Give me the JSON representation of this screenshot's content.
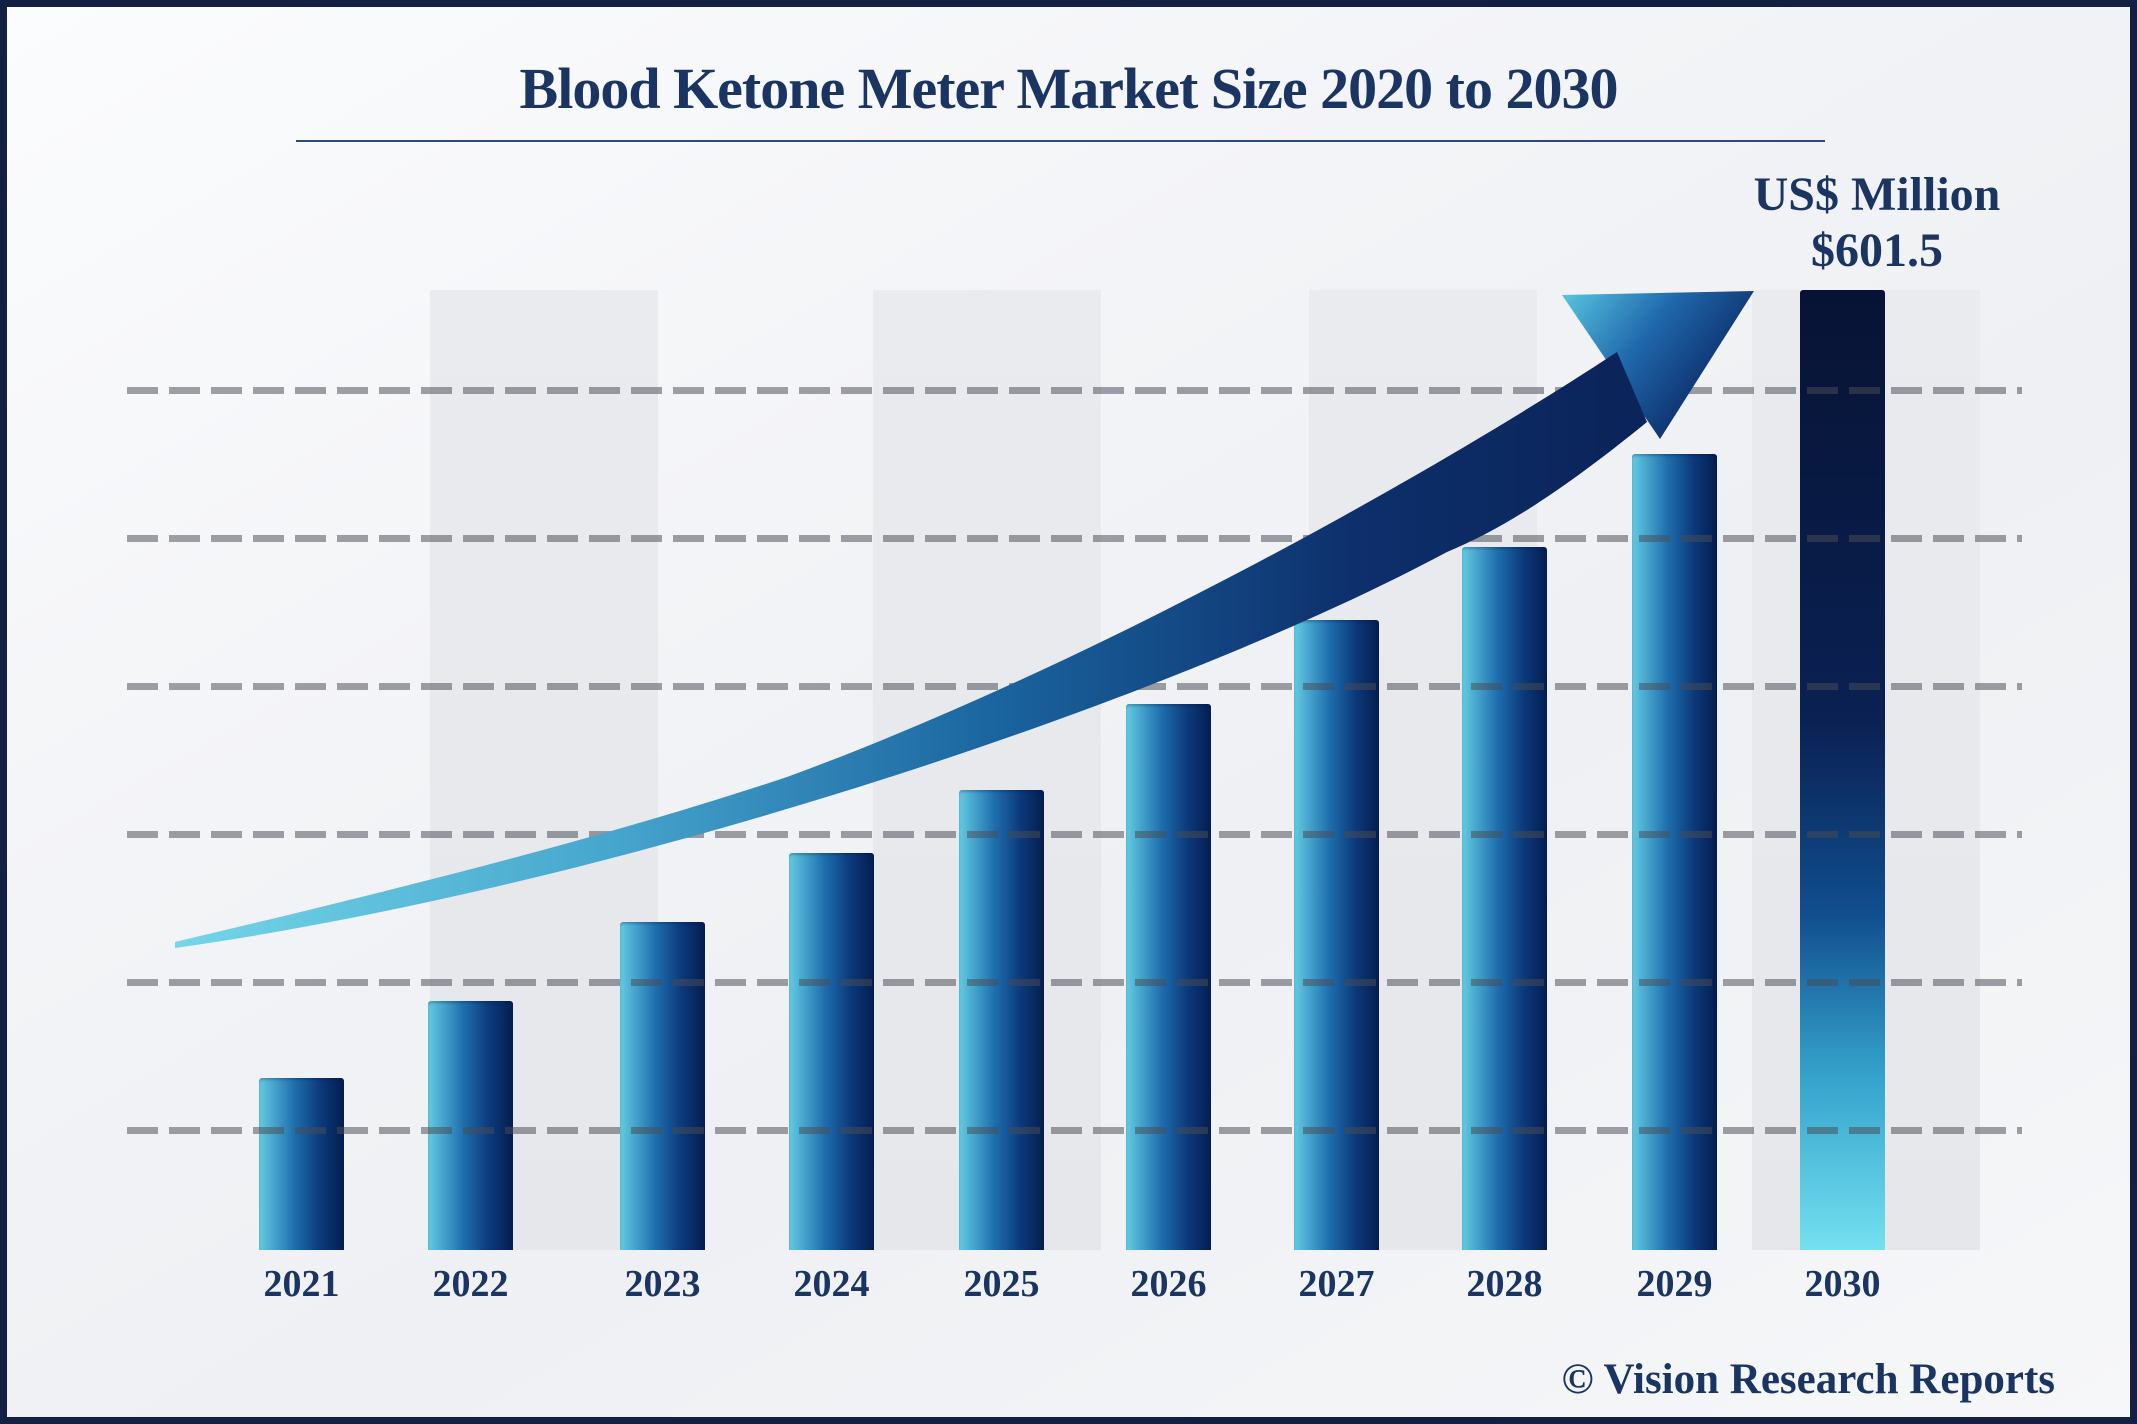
{
  "header": {
    "title": "Blood Ketone Meter Market Size 2020 to 2030"
  },
  "annotation": {
    "unit_label": "US$ Million",
    "value_label": "$601.5"
  },
  "watermark": "© Vision Research Reports",
  "colors": {
    "navy_text": "#1b3563",
    "border": "#131f43",
    "gridline": "rgba(72,76,84,0.52)",
    "band": "#e7e9ed",
    "bar_gradient": [
      "#63cbe2",
      "#1e6eae",
      "#0b3a7c",
      "#051d50"
    ],
    "bar_2030_gradient": [
      "#071334",
      "#0a2153",
      "#104e8e",
      "#35a3cc",
      "#74e0f0"
    ],
    "arrow_cyan": "#74d6e8",
    "arrow_navy": "#0a1f52"
  },
  "chart_data": {
    "type": "bar",
    "title": "Blood Ketone Meter Market Size 2020 to 2030",
    "unit": "US$ Million",
    "categories": [
      "2021",
      "2022",
      "2023",
      "2024",
      "2025",
      "2026",
      "2027",
      "2028",
      "2029",
      "2030"
    ],
    "values": [
      107.8,
      156.0,
      205.5,
      248.8,
      288.2,
      342.1,
      394.7,
      440.5,
      498.8,
      601.5
    ],
    "values_estimated_from_pixels": true,
    "labeled_point": {
      "category": "2030",
      "label": "$601.5",
      "value": 601.5
    },
    "xlabel": "",
    "ylabel": "US$ Million",
    "ylim": [
      0,
      650
    ],
    "y_axis_ticks_visible": false,
    "gridlines": {
      "horizontal": true,
      "count": 6,
      "style": "dashed"
    },
    "legend": null,
    "annotations": [
      "US$ Million",
      "$601.5",
      "upward curved trend arrow"
    ]
  }
}
